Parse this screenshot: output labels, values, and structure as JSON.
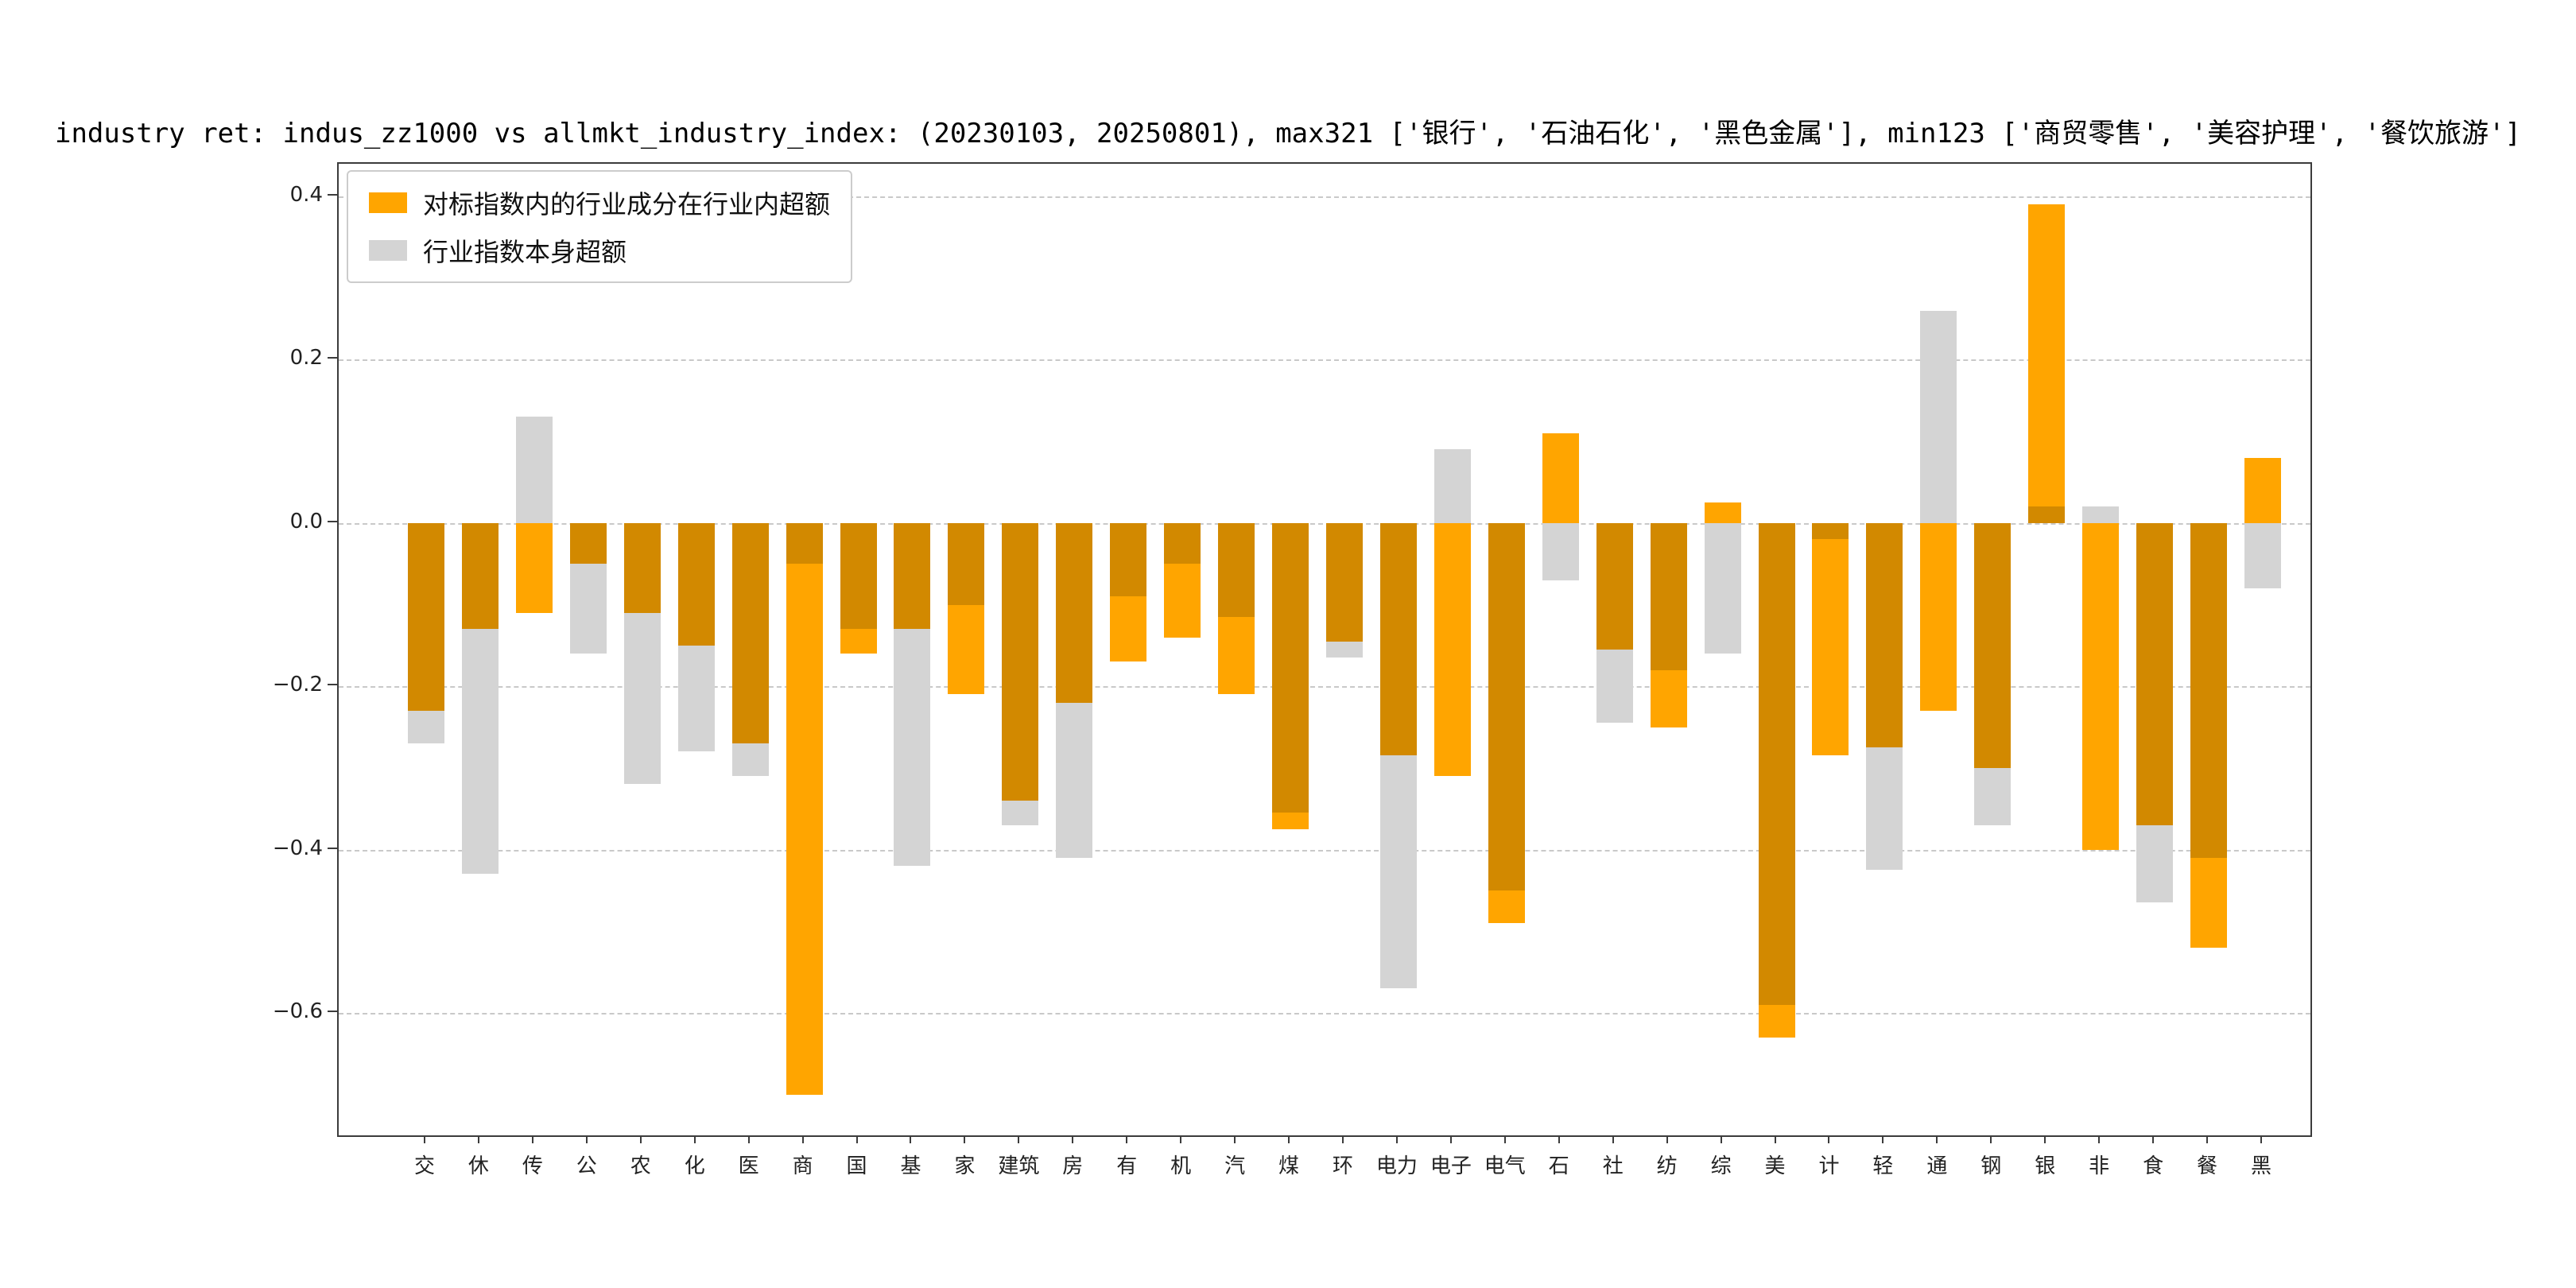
{
  "title": "industry ret: indus_zz1000 vs allmkt_industry_index: (20230103, 20250801), max321 ['银行', '石油石化', '黑色金属'], min123 ['商贸零售', '美容护理', '餐饮旅游']",
  "legend": {
    "orange_label": "对标指数内的行业成分在行业内超额",
    "gray_label": "行业指数本身超额"
  },
  "colors": {
    "orange": "#FFA500",
    "gray": "#D4D4D4",
    "overlap": "#D28900",
    "grid": "#C9C9C9",
    "spine": "#3C3C3C"
  },
  "chart_data": {
    "type": "bar",
    "title": "industry ret: indus_zz1000 vs allmkt_industry_index: (20230103, 20250801), max321 ['银行', '石油石化', '黑色金属'], min123 ['商贸零售', '美容护理', '餐饮旅游']",
    "xlabel": "",
    "ylabel": "",
    "grid": "dashed-horizontal",
    "legend_position": "upper-left",
    "ylim": [
      -0.75,
      0.44
    ],
    "yticks": [
      0.4,
      0.2,
      0.0,
      -0.2,
      -0.4,
      -0.6
    ],
    "categories": [
      "交",
      "休",
      "传",
      "公",
      "农",
      "化",
      "医",
      "商",
      "国",
      "基",
      "家",
      "建筑",
      "房",
      "有",
      "机",
      "汽",
      "煤",
      "环",
      "电力",
      "电子",
      "电气",
      "石",
      "社",
      "纺",
      "综",
      "美",
      "计",
      "轻",
      "通",
      "钢",
      "银",
      "非",
      "食",
      "餐",
      "黑"
    ],
    "series": [
      {
        "name": "对标指数内的行业成分在行业内超额",
        "color": "#FFA500",
        "values": [
          -0.23,
          -0.13,
          -0.11,
          -0.05,
          -0.11,
          -0.15,
          -0.27,
          -0.7,
          -0.16,
          -0.13,
          -0.21,
          -0.34,
          -0.22,
          -0.17,
          -0.14,
          -0.21,
          -0.375,
          -0.145,
          -0.285,
          -0.31,
          -0.49,
          0.11,
          -0.155,
          -0.25,
          0.025,
          -0.63,
          -0.285,
          -0.275,
          -0.23,
          -0.3,
          0.39,
          -0.4,
          -0.37,
          -0.52,
          0.08
        ]
      },
      {
        "name": "行业指数本身超额",
        "color": "#D4D4D4",
        "values": [
          -0.27,
          -0.43,
          0.13,
          -0.16,
          -0.32,
          -0.28,
          -0.31,
          -0.05,
          -0.13,
          -0.42,
          -0.1,
          -0.37,
          -0.41,
          -0.09,
          -0.05,
          -0.115,
          -0.355,
          -0.165,
          -0.57,
          0.09,
          -0.45,
          -0.07,
          -0.245,
          -0.18,
          -0.16,
          -0.59,
          -0.02,
          -0.425,
          0.26,
          -0.37,
          0.02,
          0.02,
          -0.465,
          -0.41,
          -0.08
        ]
      }
    ]
  }
}
